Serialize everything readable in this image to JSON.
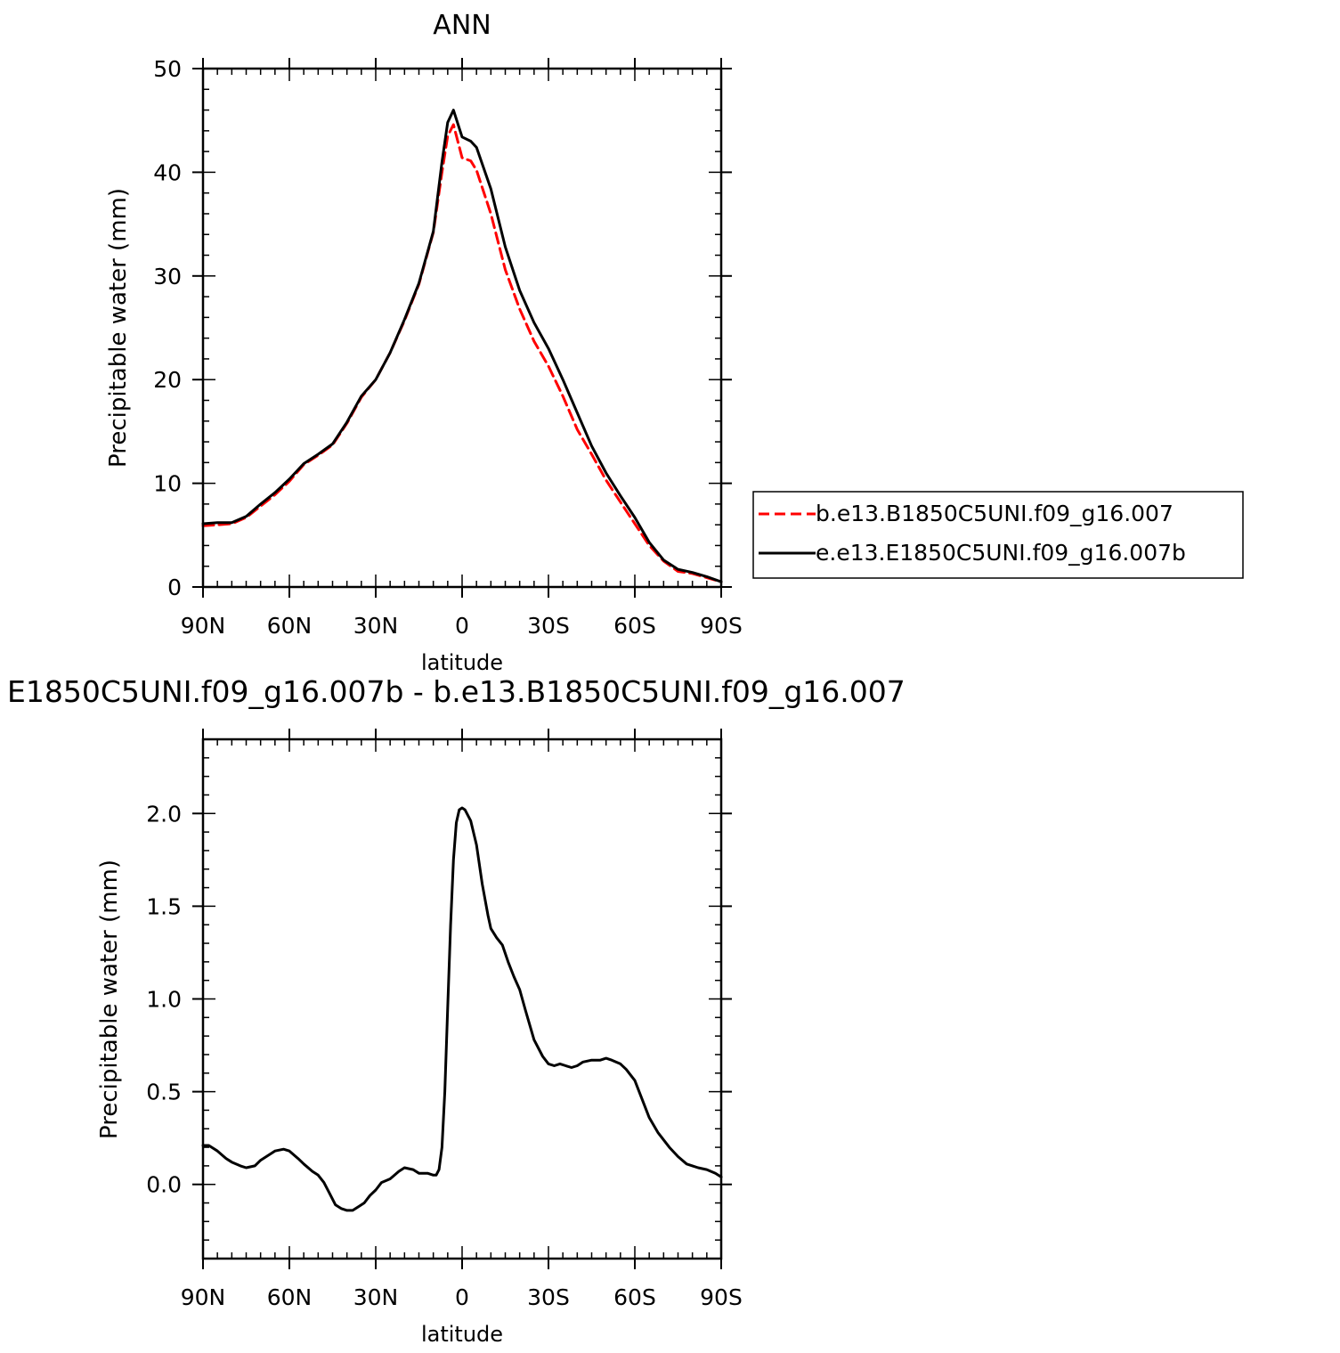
{
  "chart_data": [
    {
      "type": "line",
      "title": "ANN",
      "xlabel": "latitude",
      "ylabel": "Precipitable water (mm)",
      "x_tick_labels": [
        "90N",
        "60N",
        "30N",
        "0",
        "30S",
        "60S",
        "90S"
      ],
      "x_tick_values": [
        90,
        60,
        30,
        0,
        -30,
        -60,
        -90
      ],
      "y_tick_labels": [
        "0",
        "10",
        "20",
        "30",
        "40",
        "50"
      ],
      "y_tick_values": [
        0,
        10,
        20,
        30,
        40,
        50
      ],
      "xlim": [
        90,
        -90
      ],
      "ylim": [
        0,
        50
      ],
      "legend_position": "right",
      "series": [
        {
          "name": "b.e13.B1850C5UNI.f09_g16.007",
          "color": "#ff0000",
          "style": "dashed",
          "x": [
            90,
            85,
            80,
            75,
            70,
            65,
            60,
            55,
            50,
            45,
            40,
            35,
            30,
            25,
            20,
            15,
            10,
            7,
            5,
            3,
            0,
            -3,
            -5,
            -10,
            -15,
            -20,
            -25,
            -30,
            -35,
            -40,
            -45,
            -50,
            -55,
            -60,
            -65,
            -70,
            -75,
            -80,
            -85,
            -90
          ],
          "values": [
            5.9,
            6.0,
            6.1,
            6.7,
            7.8,
            8.9,
            10.2,
            11.8,
            12.7,
            13.7,
            15.8,
            18.3,
            20.0,
            22.6,
            25.7,
            29.2,
            34.2,
            40.0,
            43.5,
            44.6,
            41.4,
            41.1,
            40.2,
            36.0,
            30.6,
            26.8,
            23.7,
            21.3,
            18.4,
            15.2,
            12.8,
            10.3,
            8.2,
            6.1,
            4.0,
            2.5,
            1.5,
            1.3,
            0.9,
            0.5
          ]
        },
        {
          "name": "e.e13.E1850C5UNI.f09_g16.007b",
          "color": "#000000",
          "style": "solid",
          "x": [
            90,
            85,
            80,
            75,
            70,
            65,
            60,
            55,
            50,
            45,
            40,
            35,
            30,
            25,
            20,
            15,
            10,
            7,
            5,
            3,
            0,
            -3,
            -5,
            -10,
            -15,
            -20,
            -25,
            -30,
            -35,
            -40,
            -45,
            -50,
            -55,
            -60,
            -65,
            -70,
            -75,
            -80,
            -85,
            -90
          ],
          "values": [
            6.1,
            6.2,
            6.2,
            6.8,
            8.0,
            9.1,
            10.4,
            11.9,
            12.8,
            13.8,
            15.9,
            18.4,
            20.0,
            22.6,
            25.8,
            29.3,
            34.3,
            41.0,
            44.8,
            46.0,
            43.4,
            43.0,
            42.4,
            38.4,
            32.8,
            28.6,
            25.5,
            23.0,
            20.0,
            16.8,
            13.6,
            11.0,
            8.8,
            6.7,
            4.3,
            2.6,
            1.7,
            1.4,
            1.0,
            0.5
          ]
        }
      ]
    },
    {
      "type": "line",
      "title": "E1850C5UNI.f09_g16.007b - b.e13.B1850C5UNI.f09_g16.007",
      "xlabel": "latitude",
      "ylabel": "Precipitable water (mm)",
      "x_tick_labels": [
        "90N",
        "60N",
        "30N",
        "0",
        "30S",
        "60S",
        "90S"
      ],
      "x_tick_values": [
        90,
        60,
        30,
        0,
        -30,
        -60,
        -90
      ],
      "y_tick_labels": [
        "0.0",
        "0.5",
        "1.0",
        "1.5",
        "2.0"
      ],
      "y_tick_values": [
        0.0,
        0.5,
        1.0,
        1.5,
        2.0
      ],
      "xlim": [
        90,
        -90
      ],
      "ylim": [
        -0.4,
        2.4
      ],
      "series": [
        {
          "color": "#000000",
          "style": "solid",
          "x": [
            90,
            88,
            85,
            82,
            80,
            77,
            75,
            72,
            70,
            67,
            65,
            62,
            60,
            57,
            55,
            52,
            50,
            48,
            46,
            44,
            42,
            40,
            38,
            36,
            34,
            32,
            30,
            28,
            25,
            22,
            20,
            17,
            15,
            12,
            10,
            9,
            8,
            7,
            6,
            5,
            4,
            3,
            2,
            1,
            0,
            -1,
            -3,
            -5,
            -7,
            -9,
            -10,
            -12,
            -14,
            -16,
            -18,
            -20,
            -22,
            -25,
            -28,
            -30,
            -32,
            -34,
            -36,
            -38,
            -40,
            -42,
            -45,
            -48,
            -50,
            -52,
            -55,
            -57,
            -60,
            -62,
            -65,
            -68,
            -70,
            -72,
            -75,
            -78,
            -80,
            -82,
            -85,
            -88,
            -90
          ],
          "values": [
            0.21,
            0.21,
            0.18,
            0.14,
            0.12,
            0.1,
            0.09,
            0.1,
            0.13,
            0.16,
            0.18,
            0.19,
            0.18,
            0.14,
            0.11,
            0.07,
            0.05,
            0.01,
            -0.05,
            -0.11,
            -0.13,
            -0.14,
            -0.14,
            -0.12,
            -0.1,
            -0.06,
            -0.03,
            0.01,
            0.03,
            0.07,
            0.09,
            0.08,
            0.06,
            0.06,
            0.05,
            0.05,
            0.08,
            0.2,
            0.5,
            0.95,
            1.4,
            1.75,
            1.95,
            2.02,
            2.03,
            2.02,
            1.96,
            1.83,
            1.62,
            1.45,
            1.38,
            1.33,
            1.29,
            1.2,
            1.12,
            1.05,
            0.94,
            0.78,
            0.69,
            0.65,
            0.64,
            0.65,
            0.64,
            0.63,
            0.64,
            0.66,
            0.67,
            0.67,
            0.68,
            0.67,
            0.65,
            0.62,
            0.56,
            0.48,
            0.36,
            0.28,
            0.24,
            0.2,
            0.15,
            0.11,
            0.1,
            0.09,
            0.08,
            0.06,
            0.04
          ]
        }
      ]
    }
  ]
}
